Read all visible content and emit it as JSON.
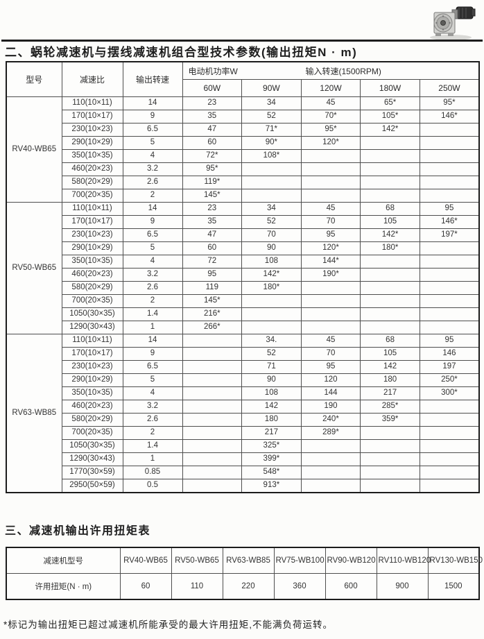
{
  "page": {
    "section2_title": "二、蜗轮减速机与摆线减速机组合型技术参数(输出扭矩N · m)",
    "section3_title": "三、减速机输出许用扭矩表",
    "footnote": "*标记为输出扭矩已超过减速机所能承受的最大许用扭矩,不能满负荷运转。",
    "photo_alt": "worm-gear-reducer-photo"
  },
  "main_table": {
    "header": {
      "col_model": "型号",
      "col_ratio": "减速比",
      "col_output_speed": "输出转速",
      "motor_power_label": "电动机功率W",
      "input_speed_label": "输入转速(1500RPM)",
      "power_columns": [
        "60W",
        "90W",
        "120W",
        "180W",
        "250W"
      ]
    },
    "sections": [
      {
        "model": "RV40-WB65",
        "rows": [
          {
            "ratio": "110(10×11)",
            "speed": "14",
            "values": [
              "23",
              "34",
              "45",
              "65*",
              "95*"
            ]
          },
          {
            "ratio": "170(10×17)",
            "speed": "9",
            "values": [
              "35",
              "52",
              "70*",
              "105*",
              "146*"
            ]
          },
          {
            "ratio": "230(10×23)",
            "speed": "6.5",
            "values": [
              "47",
              "71*",
              "95*",
              "142*",
              ""
            ]
          },
          {
            "ratio": "290(10×29)",
            "speed": "5",
            "values": [
              "60",
              "90*",
              "120*",
              "",
              ""
            ]
          },
          {
            "ratio": "350(10×35)",
            "speed": "4",
            "values": [
              "72*",
              "108*",
              "",
              "",
              ""
            ]
          },
          {
            "ratio": "460(20×23)",
            "speed": "3.2",
            "values": [
              "95*",
              "",
              "",
              "",
              ""
            ]
          },
          {
            "ratio": "580(20×29)",
            "speed": "2.6",
            "values": [
              "119*",
              "",
              "",
              "",
              ""
            ]
          },
          {
            "ratio": "700(20×35)",
            "speed": "2",
            "values": [
              "145*",
              "",
              "",
              "",
              ""
            ]
          }
        ]
      },
      {
        "model": "RV50-WB65",
        "rows": [
          {
            "ratio": "110(10×11)",
            "speed": "14",
            "values": [
              "23",
              "34",
              "45",
              "68",
              "95"
            ]
          },
          {
            "ratio": "170(10×17)",
            "speed": "9",
            "values": [
              "35",
              "52",
              "70",
              "105",
              "146*"
            ]
          },
          {
            "ratio": "230(10×23)",
            "speed": "6.5",
            "values": [
              "47",
              "70",
              "95",
              "142*",
              "197*"
            ]
          },
          {
            "ratio": "290(10×29)",
            "speed": "5",
            "values": [
              "60",
              "90",
              "120*",
              "180*",
              ""
            ]
          },
          {
            "ratio": "350(10×35)",
            "speed": "4",
            "values": [
              "72",
              "108",
              "144*",
              "",
              ""
            ]
          },
          {
            "ratio": "460(20×23)",
            "speed": "3.2",
            "values": [
              "95",
              "142*",
              "190*",
              "",
              ""
            ]
          },
          {
            "ratio": "580(20×29)",
            "speed": "2.6",
            "values": [
              "119",
              "180*",
              "",
              "",
              ""
            ]
          },
          {
            "ratio": "700(20×35)",
            "speed": "2",
            "values": [
              "145*",
              "",
              "",
              "",
              ""
            ]
          },
          {
            "ratio": "1050(30×35)",
            "speed": "1.4",
            "values": [
              "216*",
              "",
              "",
              "",
              ""
            ]
          },
          {
            "ratio": "1290(30×43)",
            "speed": "1",
            "values": [
              "266*",
              "",
              "",
              "",
              ""
            ]
          }
        ]
      },
      {
        "model": "RV63-WB85",
        "rows": [
          {
            "ratio": "110(10×11)",
            "speed": "14",
            "values": [
              "",
              "34.",
              "45",
              "68",
              "95"
            ]
          },
          {
            "ratio": "170(10×17)",
            "speed": "9",
            "values": [
              "",
              "52",
              "70",
              "105",
              "146"
            ]
          },
          {
            "ratio": "230(10×23)",
            "speed": "6.5",
            "values": [
              "",
              "71",
              "95",
              "142",
              "197"
            ]
          },
          {
            "ratio": "290(10×29)",
            "speed": "5",
            "values": [
              "",
              "90",
              "120",
              "180",
              "250*"
            ]
          },
          {
            "ratio": "350(10×35)",
            "speed": "4",
            "values": [
              "",
              "108",
              "144",
              "217",
              "300*"
            ]
          },
          {
            "ratio": "460(20×23)",
            "speed": "3.2",
            "values": [
              "",
              "142",
              "190",
              "285*",
              ""
            ]
          },
          {
            "ratio": "580(20×29)",
            "speed": "2.6",
            "values": [
              "",
              "180",
              "240*",
              "359*",
              ""
            ]
          },
          {
            "ratio": "700(20×35)",
            "speed": "2",
            "values": [
              "",
              "217",
              "289*",
              "",
              ""
            ]
          },
          {
            "ratio": "1050(30×35)",
            "speed": "1.4",
            "values": [
              "",
              "325*",
              "",
              "",
              ""
            ]
          },
          {
            "ratio": "1290(30×43)",
            "speed": "1",
            "values": [
              "",
              "399*",
              "",
              "",
              ""
            ]
          },
          {
            "ratio": "1770(30×59)",
            "speed": "0.85",
            "values": [
              "",
              "548*",
              "",
              "",
              ""
            ]
          },
          {
            "ratio": "2950(50×59)",
            "speed": "0.5",
            "values": [
              "",
              "913*",
              "",
              "",
              ""
            ]
          }
        ]
      }
    ]
  },
  "torque_table": {
    "model_header": "减速机型号",
    "torque_header": "许用扭矩(N · m)",
    "models": [
      "RV40-WB65",
      "RV50-WB65",
      "RV63-WB85",
      "RV75-WB100",
      "RV90-WB120",
      "RV110-WB120",
      "RV130-WB150"
    ],
    "torques": [
      "60",
      "110",
      "220",
      "360",
      "600",
      "900",
      "1500"
    ]
  }
}
